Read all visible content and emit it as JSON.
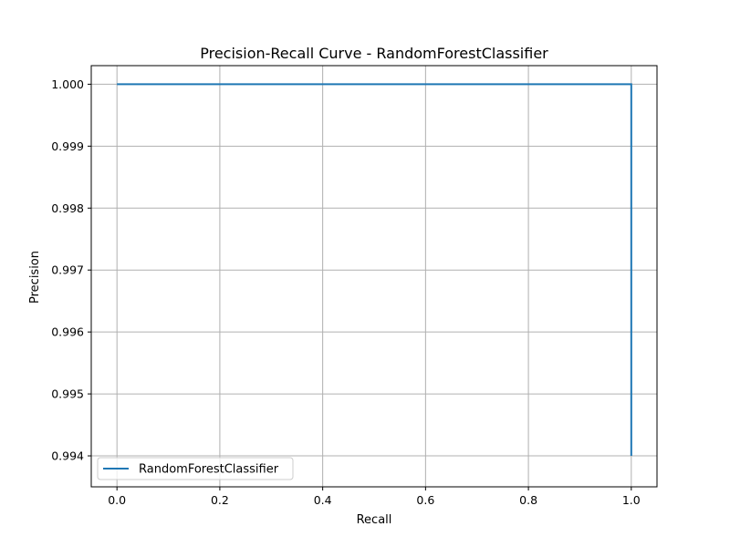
{
  "chart_data": {
    "type": "line",
    "title": "Precision-Recall Curve - RandomForestClassifier",
    "xlabel": "Recall",
    "ylabel": "Precision",
    "xlim": [
      -0.05,
      1.05
    ],
    "ylim": [
      0.9935,
      1.0003
    ],
    "x_ticks": [
      0.0,
      0.2,
      0.4,
      0.6,
      0.8,
      1.0
    ],
    "x_tick_labels": [
      "0.0",
      "0.2",
      "0.4",
      "0.6",
      "0.8",
      "1.0"
    ],
    "y_ticks": [
      0.994,
      0.995,
      0.996,
      0.997,
      0.998,
      0.999,
      1.0
    ],
    "y_tick_labels": [
      "0.994",
      "0.995",
      "0.996",
      "0.997",
      "0.998",
      "0.999",
      "1.000"
    ],
    "grid": true,
    "legend_position": "lower-left",
    "series": [
      {
        "name": "RandomForestClassifier",
        "color": "#1f77b4",
        "x": [
          0.0,
          1.0,
          1.0
        ],
        "y": [
          1.0,
          1.0,
          0.994
        ]
      }
    ]
  }
}
